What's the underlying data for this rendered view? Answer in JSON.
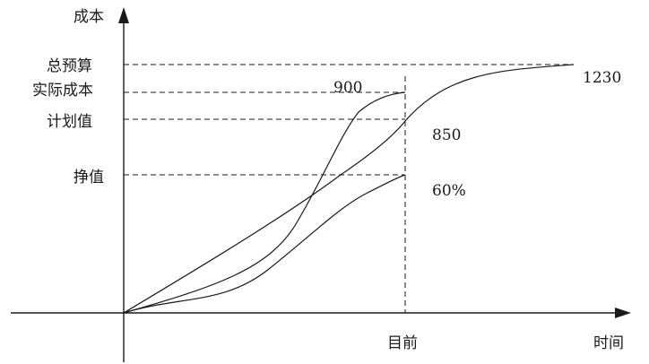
{
  "chart_data": {
    "type": "line",
    "y_axis_label": "成本",
    "x_axis_label": "时间",
    "now_label": "目前",
    "y_levels": [
      {
        "label": "总预算",
        "value": 1230
      },
      {
        "label": "实际成本",
        "value": 900
      },
      {
        "label": "计划值",
        "value": 850
      },
      {
        "label": "挣值",
        "value": "60%"
      }
    ],
    "value_labels": [
      "1230",
      "900",
      "850",
      "60%"
    ],
    "grid": false
  }
}
